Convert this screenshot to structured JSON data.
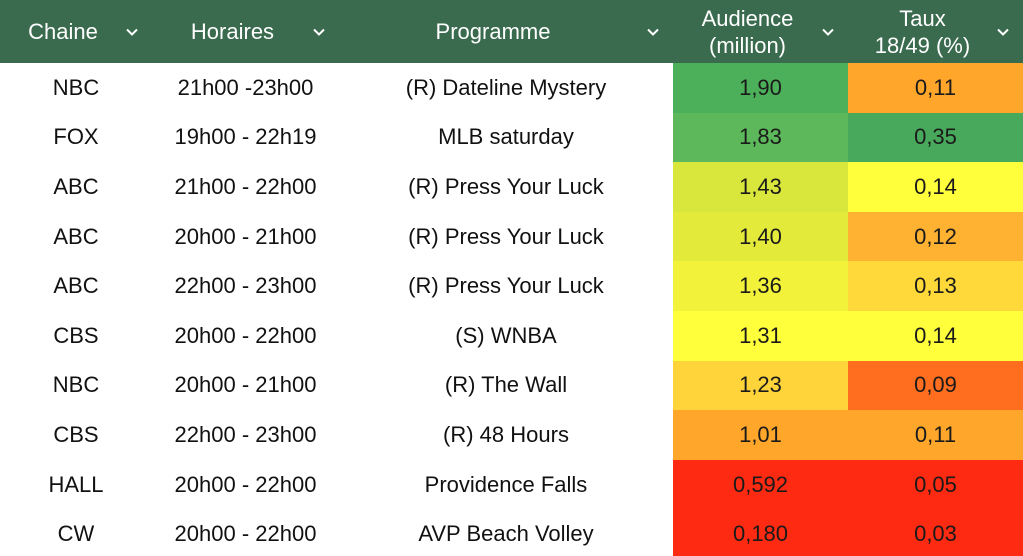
{
  "header": {
    "chaine": "Chaine",
    "horaires": "Horaires",
    "programme": "Programme",
    "audience": "Audience\n(million)",
    "taux": "Taux\n18/49 (%)",
    "chevron_icon": "chevron-down-icon"
  },
  "rows": [
    {
      "chaine": "NBC",
      "horaires": "21h00 -23h00",
      "programme": "(R) Dateline Mystery",
      "audience": "1,90",
      "taux": "0,11",
      "audience_color": "#4caf59",
      "taux_color": "#ffa62b"
    },
    {
      "chaine": "FOX",
      "horaires": "19h00 - 22h19",
      "programme": "MLB saturday",
      "audience": "1,83",
      "taux": "0,35",
      "audience_color": "#5cb85a",
      "taux_color": "#48a85c"
    },
    {
      "chaine": "ABC",
      "horaires": "21h00 - 22h00",
      "programme": "(R) Press Your Luck",
      "audience": "1,43",
      "taux": "0,14",
      "audience_color": "#d9e63c",
      "taux_color": "#ffff3c"
    },
    {
      "chaine": "ABC",
      "horaires": "20h00 - 21h00",
      "programme": "(R) Press Your Luck",
      "audience": "1,40",
      "taux": "0,12",
      "audience_color": "#e4ea3a",
      "taux_color": "#ffb232"
    },
    {
      "chaine": "ABC",
      "horaires": "22h00 - 23h00",
      "programme": "(R) Press Your Luck",
      "audience": "1,36",
      "taux": "0,13",
      "audience_color": "#f2f23a",
      "taux_color": "#ffd93a"
    },
    {
      "chaine": "CBS",
      "horaires": "20h00 - 22h00",
      "programme": "(S) WNBA",
      "audience": "1,31",
      "taux": "0,14",
      "audience_color": "#ffff3c",
      "taux_color": "#ffff3c"
    },
    {
      "chaine": "NBC",
      "horaires": "20h00 - 21h00",
      "programme": "(R) The Wall",
      "audience": "1,23",
      "taux": "0,09",
      "audience_color": "#ffd43a",
      "taux_color": "#ff6e1e"
    },
    {
      "chaine": "CBS",
      "horaires": "22h00 - 23h00",
      "programme": "(R) 48 Hours",
      "audience": "1,01",
      "taux": "0,11",
      "audience_color": "#ffa62b",
      "taux_color": "#ffa62b"
    },
    {
      "chaine": "HALL",
      "horaires": "20h00 - 22h00",
      "programme": "Providence Falls",
      "audience": "0,592",
      "taux": "0,05",
      "audience_color": "#ff2a12",
      "taux_color": "#ff2a12"
    },
    {
      "chaine": "CW",
      "horaires": "20h00 - 22h00",
      "programme": "AVP Beach Volley",
      "audience": "0,180",
      "taux": "0,03",
      "audience_color": "#ff2a12",
      "taux_color": "#ff2a12"
    }
  ]
}
